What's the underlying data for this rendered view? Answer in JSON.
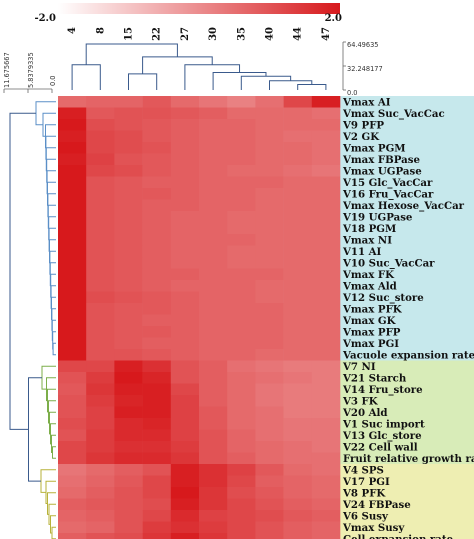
{
  "chart_data": {
    "type": "heatmap",
    "title": "",
    "columns": [
      "4",
      "8",
      "15",
      "22",
      "27",
      "30",
      "35",
      "40",
      "44",
      "47"
    ],
    "rows": [
      "Vmax AI",
      "Vmax Suc_VacCac",
      "V9 PFP",
      "V2 GK",
      "Vmax PGM",
      "Vmax FBPase",
      "Vmax UGPase",
      "V15 Glc_VacCar",
      "V16 Fru_VacCar",
      "Vmax Hexose_VacCar",
      "V19 UGPase",
      "V18 PGM",
      "Vmax NI",
      "V11 AI",
      "V10 Suc_VacCar",
      "Vmax FK",
      "Vmax Ald",
      "V12 Suc_store",
      "Vmax PFK",
      "Vmax GK",
      "Vmax PFP",
      "Vmax PGI",
      "Vacuole expansion rate",
      "V7 NI",
      "V21 Starch",
      "V14 Fru_store",
      "V3 FK",
      "V20 Ald",
      "V1 Suc import",
      "V13 Glc_store",
      "V22 Cell wall",
      "Fruit relative growth rate",
      "V4 SPS",
      "V17 PGI",
      "V8 PFK",
      "V24 FBPase",
      "V6 Susy",
      "Vmax Susy",
      "Cell expansion rate"
    ],
    "color_scale": {
      "min": -2.0,
      "max": 2.0,
      "min_label": "-2.0",
      "max_label": "2.0",
      "low_color": "#ffffff",
      "high_color": "#d7191c"
    },
    "row_groups": [
      {
        "start": 0,
        "end": 22,
        "color": "#c6e8ec"
      },
      {
        "start": 23,
        "end": 31,
        "color": "#d8ecb8"
      },
      {
        "start": 32,
        "end": 38,
        "color": "#eeeeb2"
      }
    ],
    "column_dendrogram_axis": [
      "64.49635",
      "32.248177",
      "0.0"
    ],
    "row_dendrogram_axis": [
      "11.675667",
      "5.8379335",
      "0.0"
    ],
    "values": [
      [
        0.6,
        0.7,
        0.7,
        0.9,
        0.6,
        0.4,
        0.2,
        0.5,
        1.2,
        1.9
      ],
      [
        1.9,
        0.9,
        1.0,
        1.0,
        0.9,
        0.8,
        0.6,
        0.6,
        0.6,
        0.5
      ],
      [
        2.0,
        1.1,
        1.0,
        0.9,
        0.8,
        0.7,
        0.7,
        0.6,
        0.6,
        0.6
      ],
      [
        1.9,
        1.2,
        1.1,
        0.9,
        0.8,
        0.7,
        0.7,
        0.6,
        0.5,
        0.5
      ],
      [
        2.0,
        1.2,
        1.1,
        1.0,
        0.8,
        0.7,
        0.7,
        0.6,
        0.6,
        0.5
      ],
      [
        1.9,
        1.3,
        1.0,
        0.9,
        0.8,
        0.7,
        0.7,
        0.6,
        0.6,
        0.5
      ],
      [
        2.0,
        1.2,
        1.1,
        0.9,
        0.8,
        0.7,
        0.6,
        0.6,
        0.5,
        0.4
      ],
      [
        2.0,
        1.0,
        0.9,
        0.8,
        0.8,
        0.7,
        0.7,
        0.7,
        0.6,
        0.6
      ],
      [
        2.0,
        1.0,
        0.9,
        0.9,
        0.8,
        0.7,
        0.7,
        0.6,
        0.6,
        0.6
      ],
      [
        2.0,
        1.0,
        0.9,
        0.8,
        0.8,
        0.7,
        0.7,
        0.6,
        0.6,
        0.6
      ],
      [
        2.0,
        1.0,
        0.9,
        0.8,
        0.7,
        0.7,
        0.6,
        0.6,
        0.6,
        0.6
      ],
      [
        2.0,
        1.0,
        0.9,
        0.8,
        0.7,
        0.7,
        0.6,
        0.6,
        0.6,
        0.6
      ],
      [
        2.0,
        1.0,
        0.9,
        0.8,
        0.7,
        0.7,
        0.7,
        0.6,
        0.6,
        0.6
      ],
      [
        2.0,
        1.0,
        0.9,
        0.8,
        0.7,
        0.7,
        0.6,
        0.6,
        0.6,
        0.6
      ],
      [
        2.0,
        1.0,
        0.9,
        0.8,
        0.7,
        0.7,
        0.6,
        0.6,
        0.6,
        0.6
      ],
      [
        2.0,
        1.0,
        0.9,
        0.8,
        0.8,
        0.7,
        0.7,
        0.7,
        0.6,
        0.6
      ],
      [
        2.0,
        1.0,
        0.9,
        0.8,
        0.7,
        0.7,
        0.7,
        0.6,
        0.6,
        0.6
      ],
      [
        2.0,
        1.1,
        1.0,
        0.9,
        0.8,
        0.7,
        0.7,
        0.6,
        0.6,
        0.6
      ],
      [
        2.0,
        1.0,
        0.9,
        0.9,
        0.8,
        0.7,
        0.7,
        0.7,
        0.6,
        0.6
      ],
      [
        2.0,
        1.0,
        0.9,
        0.8,
        0.8,
        0.7,
        0.7,
        0.7,
        0.6,
        0.6
      ],
      [
        2.0,
        1.0,
        0.9,
        0.9,
        0.8,
        0.7,
        0.7,
        0.7,
        0.6,
        0.6
      ],
      [
        2.0,
        1.0,
        0.9,
        0.8,
        0.8,
        0.7,
        0.7,
        0.7,
        0.6,
        0.6
      ],
      [
        2.0,
        1.0,
        1.0,
        0.9,
        0.8,
        0.7,
        0.7,
        0.6,
        0.6,
        0.6
      ],
      [
        1.2,
        1.2,
        1.9,
        1.6,
        1.0,
        0.8,
        0.5,
        0.4,
        0.3,
        0.3
      ],
      [
        1.0,
        1.4,
        2.0,
        1.8,
        1.0,
        0.8,
        0.6,
        0.5,
        0.4,
        0.3
      ],
      [
        0.9,
        1.5,
        1.9,
        1.9,
        1.2,
        0.8,
        0.6,
        0.4,
        0.3,
        0.3
      ],
      [
        1.0,
        1.4,
        1.8,
        1.9,
        1.3,
        0.8,
        0.6,
        0.4,
        0.3,
        0.3
      ],
      [
        1.0,
        1.3,
        1.9,
        1.9,
        1.3,
        0.9,
        0.6,
        0.5,
        0.3,
        0.3
      ],
      [
        1.1,
        1.3,
        1.7,
        1.8,
        1.3,
        0.9,
        0.6,
        0.5,
        0.4,
        0.4
      ],
      [
        1.0,
        1.4,
        1.7,
        1.7,
        1.3,
        1.0,
        0.7,
        0.5,
        0.4,
        0.4
      ],
      [
        1.2,
        1.4,
        1.6,
        1.6,
        1.4,
        1.0,
        0.7,
        0.6,
        0.5,
        0.4
      ],
      [
        1.2,
        1.5,
        1.7,
        1.7,
        1.5,
        1.0,
        0.8,
        0.6,
        0.5,
        0.5
      ],
      [
        0.4,
        0.6,
        0.8,
        1.0,
        1.9,
        1.6,
        1.3,
        0.9,
        0.6,
        0.5
      ],
      [
        0.5,
        0.7,
        0.9,
        1.2,
        1.9,
        1.6,
        1.2,
        0.8,
        0.7,
        0.6
      ],
      [
        0.6,
        0.8,
        1.0,
        1.2,
        2.0,
        1.5,
        1.1,
        0.9,
        0.7,
        0.6
      ],
      [
        0.8,
        0.9,
        1.0,
        1.1,
        1.9,
        1.5,
        1.2,
        1.0,
        0.8,
        0.7
      ],
      [
        0.7,
        0.8,
        1.0,
        1.2,
        1.7,
        1.3,
        1.2,
        1.1,
        0.9,
        0.8
      ],
      [
        0.6,
        0.7,
        1.0,
        1.4,
        1.6,
        1.4,
        1.2,
        1.0,
        0.8,
        0.7
      ],
      [
        0.8,
        1.0,
        1.1,
        1.5,
        1.9,
        1.5,
        1.2,
        1.0,
        0.8,
        0.7
      ]
    ]
  }
}
